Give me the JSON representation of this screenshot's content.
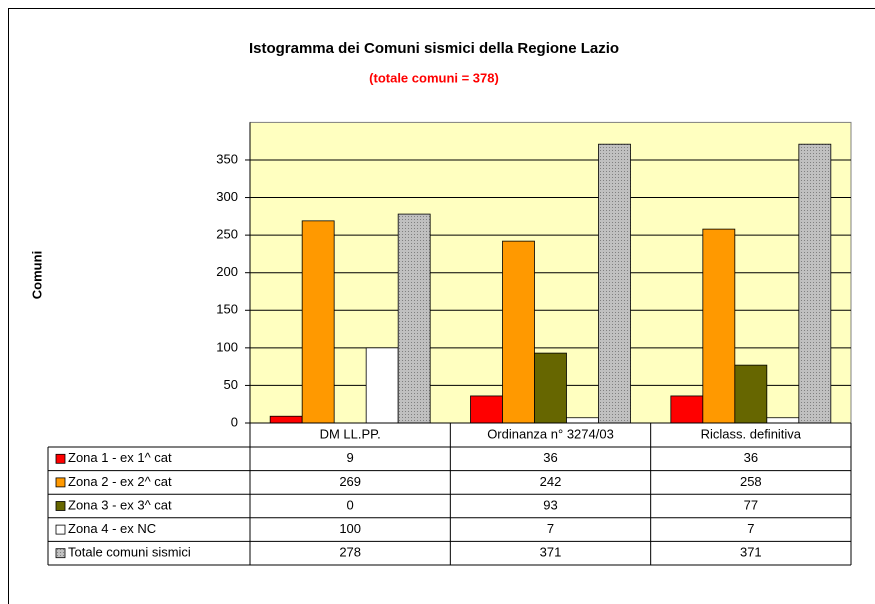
{
  "chart_data": {
    "type": "bar",
    "title": "Istogramma dei Comuni sismici della Regione Lazio",
    "subtitle": "(totale comuni = 378)",
    "ylabel": "Comuni",
    "categories": [
      "DM LL.PP.",
      "Ordinanza n° 3274/03",
      "Riclass. definitiva"
    ],
    "series": [
      {
        "name": "Zona 1 - ex 1^ cat",
        "color": "#ff0000",
        "values": [
          9,
          36,
          36
        ]
      },
      {
        "name": "Zona 2 - ex 2^ cat",
        "color": "#ff9900",
        "values": [
          269,
          242,
          258
        ]
      },
      {
        "name": "Zona 3 - ex 3^ cat",
        "color": "#666600",
        "values": [
          0,
          93,
          77
        ]
      },
      {
        "name": "Zona 4 - ex NC",
        "color": "#ffffff",
        "values": [
          100,
          7,
          7
        ]
      },
      {
        "name": "Totale comuni sismici",
        "color": "#c0c0c0",
        "values": [
          278,
          371,
          371
        ]
      }
    ],
    "ylim": [
      0,
      400
    ],
    "yticks": [
      0,
      50,
      100,
      150,
      200,
      250,
      300,
      350
    ],
    "grid": true
  }
}
